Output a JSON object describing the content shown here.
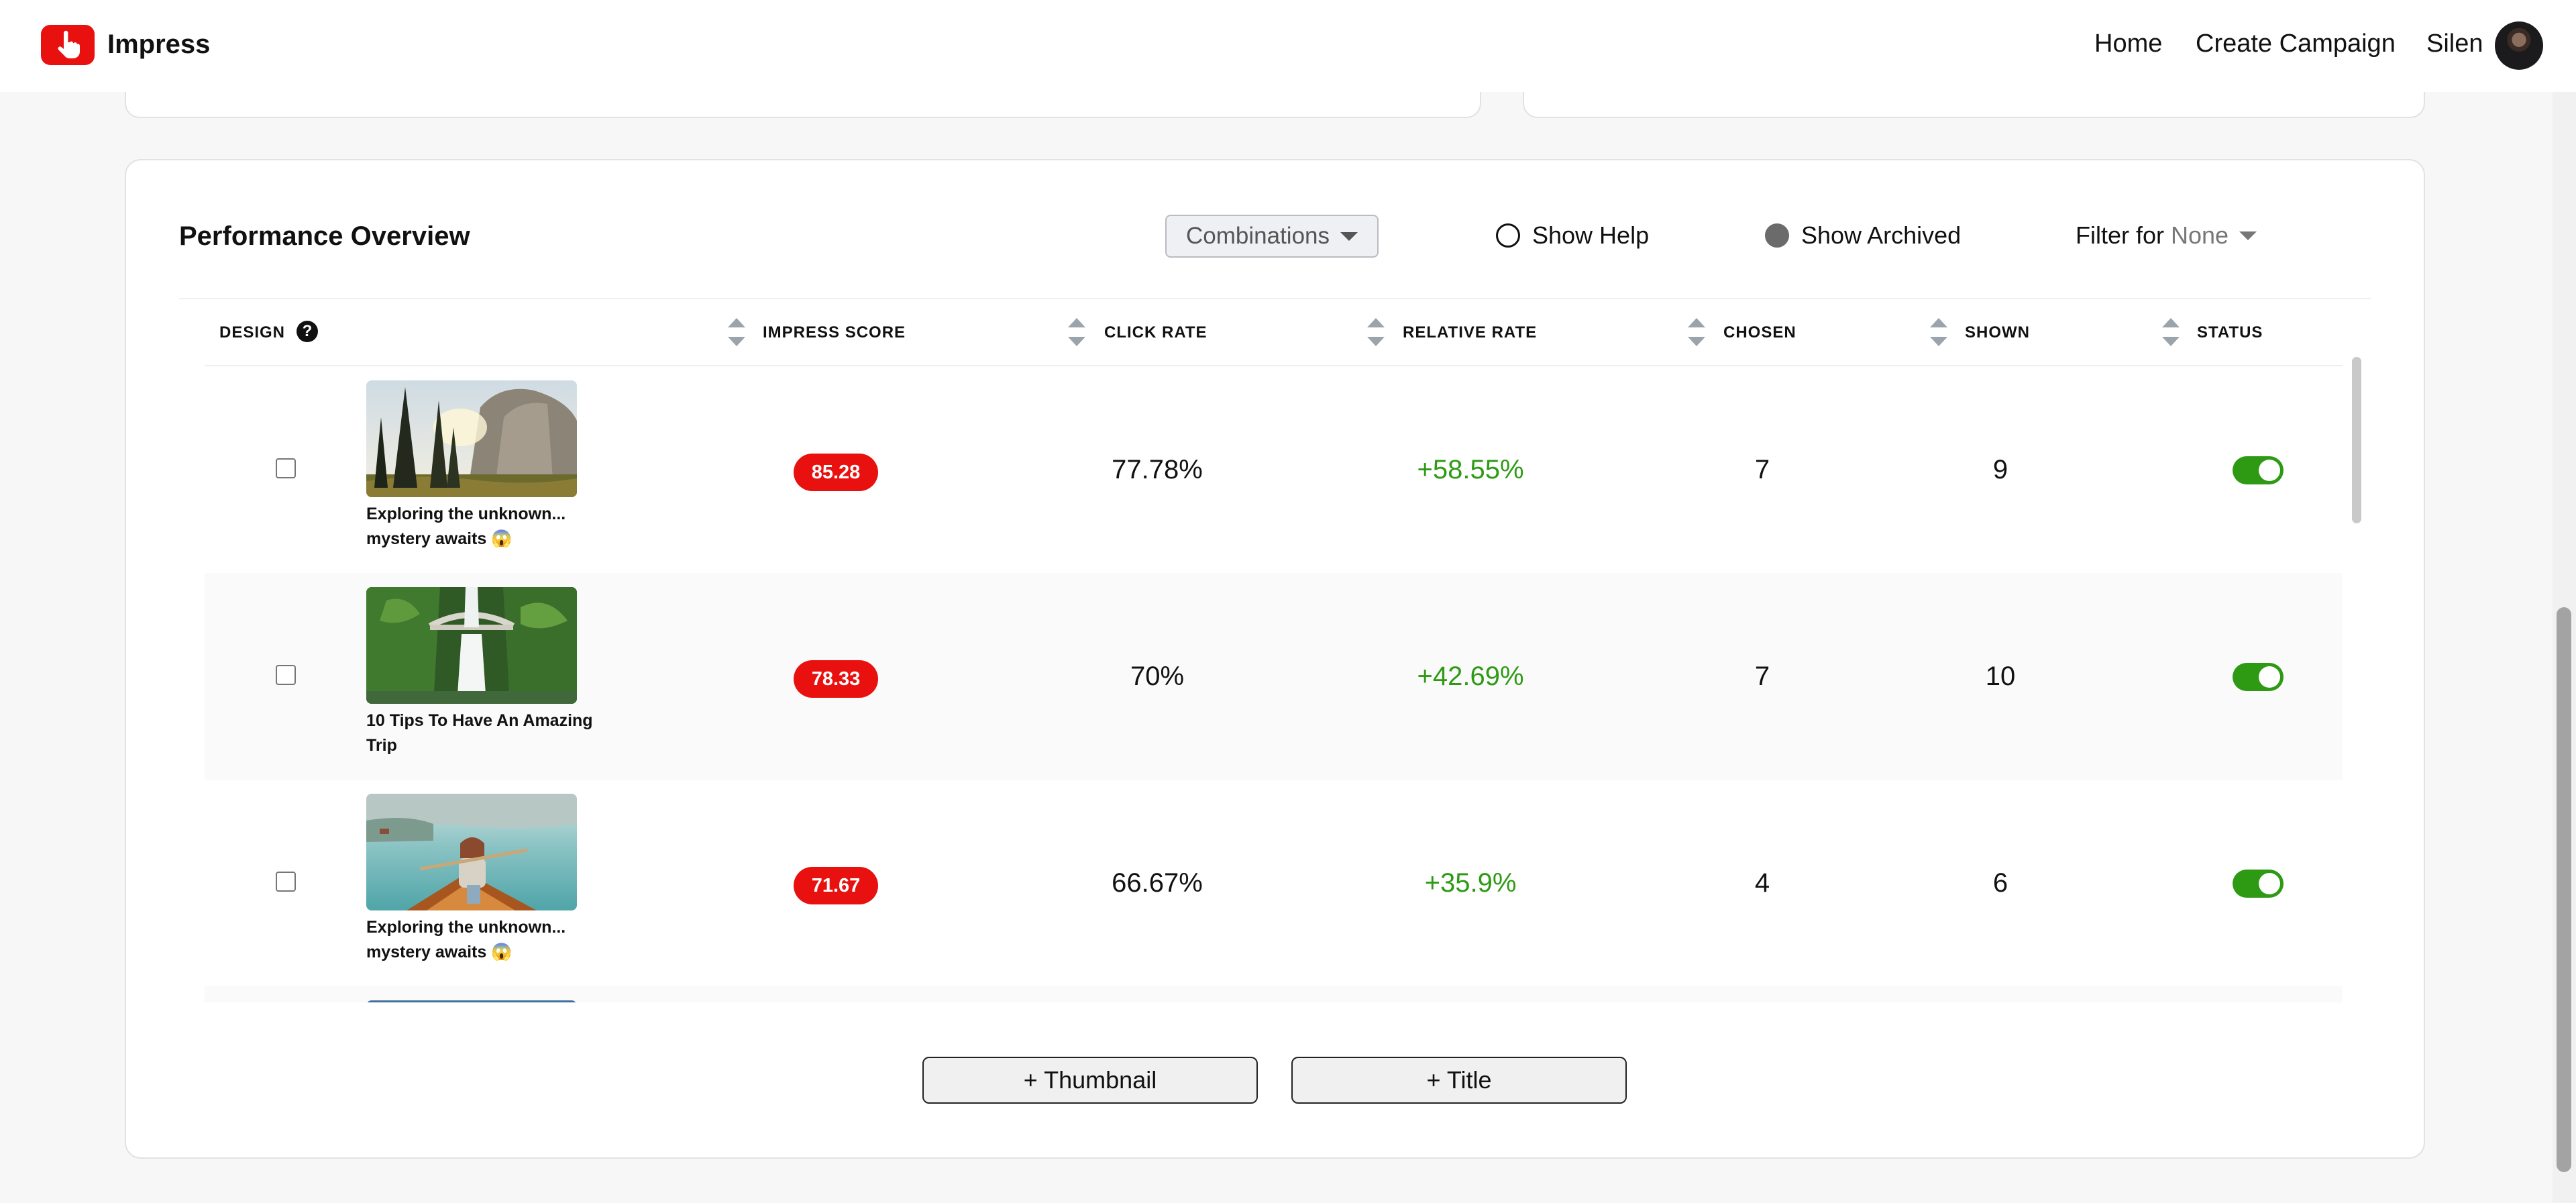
{
  "header": {
    "brand": "Impress",
    "nav": {
      "home": "Home",
      "create_campaign": "Create Campaign",
      "user_name": "Silen"
    }
  },
  "overview": {
    "title": "Performance Overview",
    "combinations_label": "Combinations",
    "show_help_label": "Show Help",
    "show_help_checked": false,
    "show_archived_label": "Show Archived",
    "show_archived_checked": true,
    "filter_label": "Filter for",
    "filter_value": "None"
  },
  "table": {
    "columns": {
      "design": "DESIGN",
      "impress_score": "IMPRESS SCORE",
      "click_rate": "CLICK RATE",
      "relative_rate": "RELATIVE RATE",
      "chosen": "CHOSEN",
      "shown": "SHOWN",
      "status": "STATUS"
    },
    "help_glyph": "?",
    "rows": [
      {
        "title": "Exploring the unknown... mystery awaits 😱",
        "thumbnail": "forest-cliff",
        "score": "85.28",
        "click_rate": "77.78%",
        "relative_rate": "+58.55%",
        "chosen": "7",
        "shown": "9",
        "status_on": true
      },
      {
        "title": "10 Tips To Have An Amazing Trip",
        "thumbnail": "waterfall-bridge",
        "score": "78.33",
        "click_rate": "70%",
        "relative_rate": "+42.69%",
        "chosen": "7",
        "shown": "10",
        "status_on": true
      },
      {
        "title": "Exploring the unknown... mystery awaits 😱",
        "thumbnail": "woman-canoe-lake",
        "score": "71.67",
        "click_rate": "66.67%",
        "relative_rate": "+35.9%",
        "chosen": "4",
        "shown": "6",
        "status_on": true
      }
    ]
  },
  "actions": {
    "add_thumbnail": "+ Thumbnail",
    "add_title": "+ Title"
  },
  "colors": {
    "accent_red": "#e8110f",
    "positive_green": "#2e9a14"
  }
}
